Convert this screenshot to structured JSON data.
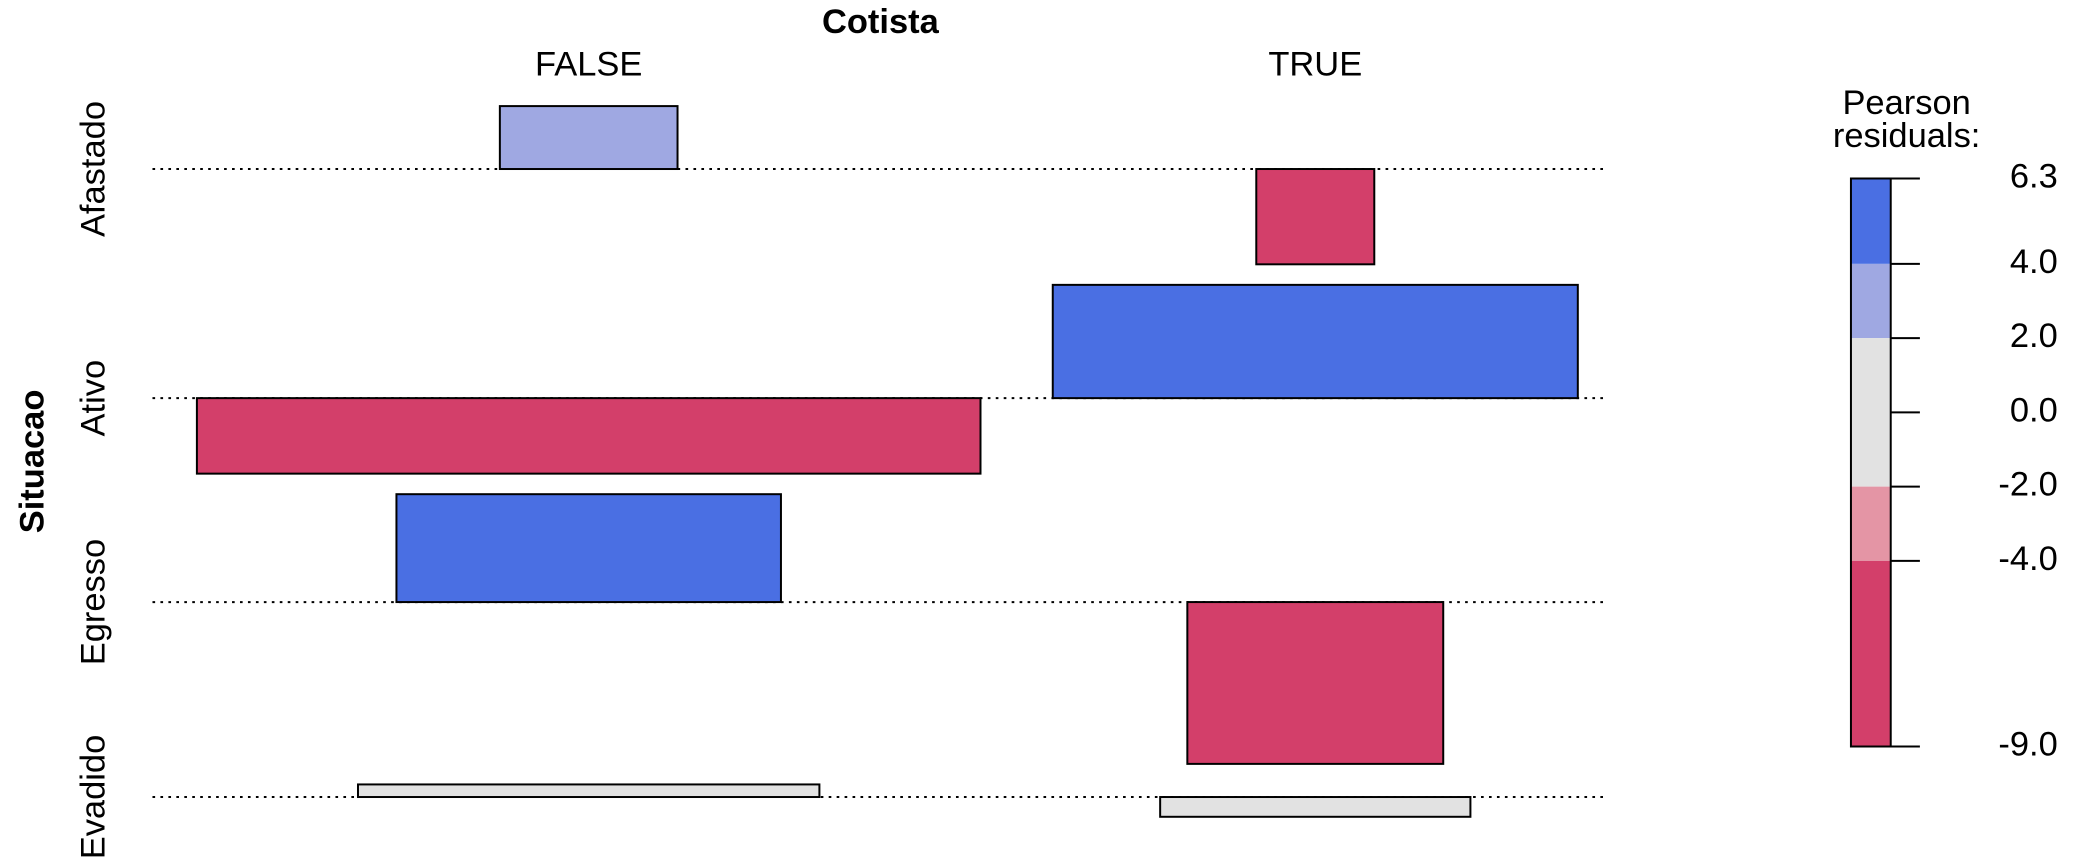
{
  "chart_data": {
    "type": "association",
    "title": "Cotista",
    "y_label": "Situacao",
    "categories": [
      "FALSE",
      "TRUE"
    ],
    "series": [
      {
        "name": "Afastado",
        "values": [
          3.5,
          -5.3
        ],
        "widths": [
          134,
          89
        ]
      },
      {
        "name": "Ativo",
        "values": [
          -4.2,
          6.3
        ],
        "widths": [
          591,
          396
        ]
      },
      {
        "name": "Egresso",
        "values": [
          6.0,
          -9.0
        ],
        "widths": [
          290,
          193
        ]
      },
      {
        "name": "Evadido",
        "values": [
          0.7,
          -1.1
        ],
        "widths": [
          348,
          234
        ]
      }
    ],
    "legend_title": [
      "Pearson",
      "residuals:"
    ],
    "ylim": [
      -9.0,
      6.3
    ],
    "yticks": [
      6.3,
      {
        "value": 4,
        "label": "4.0"
      },
      {
        "value": 2,
        "label": "2.0"
      },
      {
        "value": 0,
        "label": "0.0"
      },
      {
        "value": -2,
        "label": "-2.0"
      },
      {
        "value": -4,
        "label": "-4.0"
      },
      {
        "value": -9,
        "label": "-9.0"
      }
    ],
    "shading_colors": [
      "#4a6fe3",
      "#9fa8e2",
      "#e2e2e2",
      "#e495a5",
      "#d33f6a"
    ]
  }
}
